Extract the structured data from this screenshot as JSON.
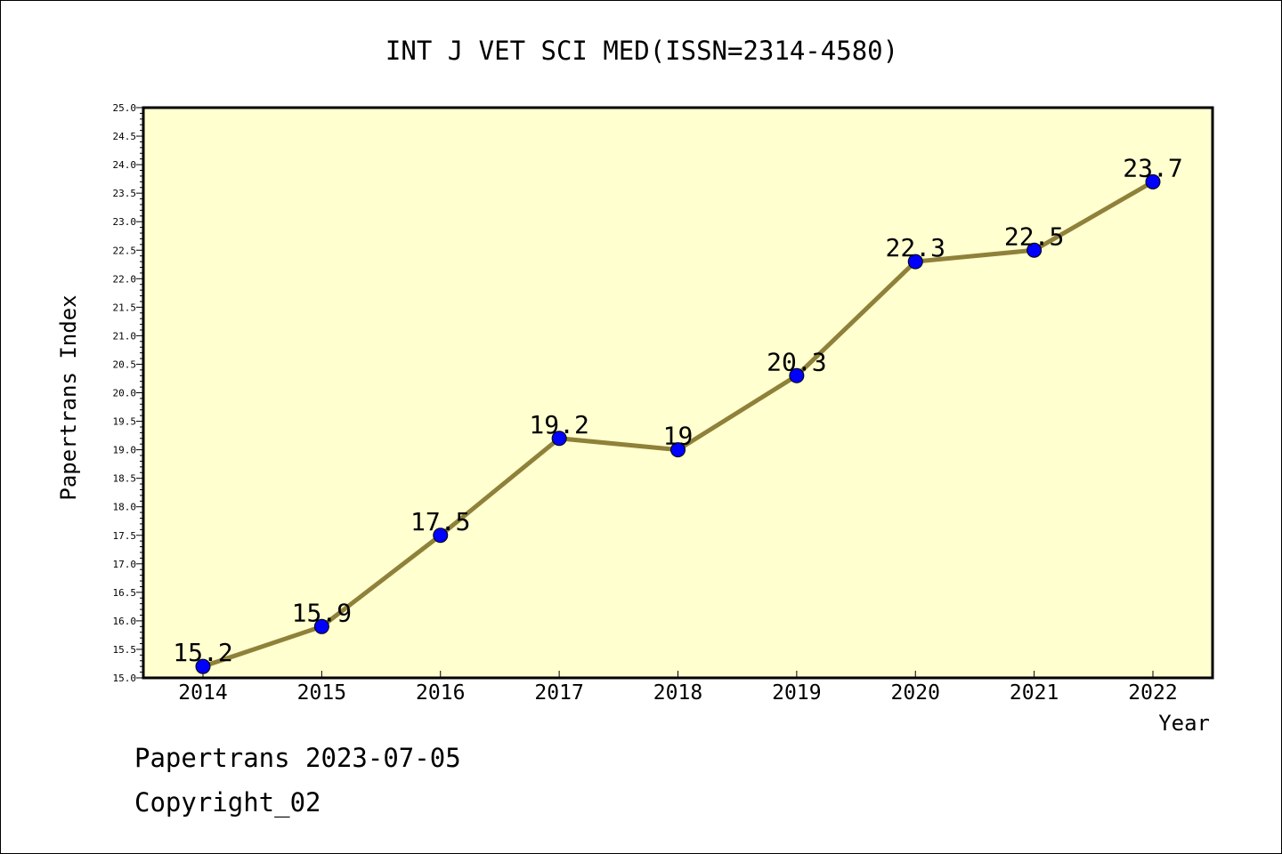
{
  "chart_data": {
    "type": "line",
    "title": "INT J VET SCI MED(ISSN=2314-4580)",
    "xlabel": "Year",
    "ylabel": "Papertrans Index",
    "categories": [
      "2014",
      "2015",
      "2016",
      "2017",
      "2018",
      "2019",
      "2020",
      "2021",
      "2022"
    ],
    "series": [
      {
        "values": [
          15.2,
          15.9,
          17.5,
          19.2,
          19.0,
          20.3,
          22.3,
          22.5,
          23.7
        ]
      }
    ],
    "data_labels": [
      "15.2",
      "15.9",
      "17.5",
      "19.2",
      "19",
      "20.3",
      "22.3",
      "22.5",
      "23.7"
    ],
    "ylim": [
      15.0,
      25.0
    ],
    "ytick_step": 0.5,
    "grid": false,
    "legend": "none",
    "colors": {
      "plot_background": "#ffffd0",
      "line": "#8f8139",
      "marker": "#0000ff"
    }
  },
  "footer": {
    "line1": "Papertrans 2023-07-05",
    "line2": "Copyright_02"
  }
}
